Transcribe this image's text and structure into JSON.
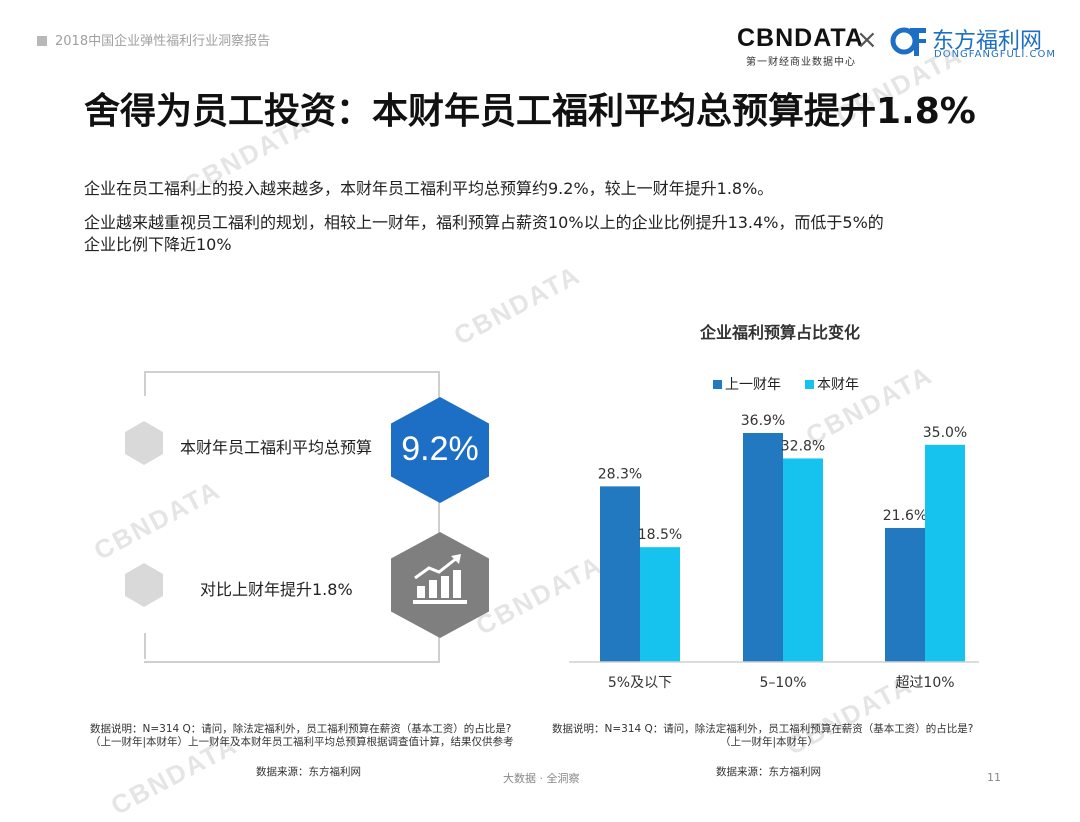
{
  "header": {
    "report_title": "2018中国企业弹性福利行业洞察报告",
    "logo_cbn": "CBNDATA",
    "logo_cbn_sub": "第一财经商业数据中心",
    "logo_times": "×",
    "logo_df_name": "东方福利网",
    "logo_df_url": "DONGFANGFULI.COM",
    "watermark_text": "CBNDATA",
    "colors": {
      "brand_blue": "#1c6fc4",
      "dark_blue": "#2379bf",
      "light_blue": "#15c3ee",
      "grey": "#d9d9d9"
    }
  },
  "slide": {
    "title": "舍得为员工投资：本财年员工福利平均总预算提升1.8%",
    "paragraph_1": "企业在员工福利上的投入越来越多，本财年员工福利平均总预算约9.2%，较上一财年提升1.8%。",
    "paragraph_2_line_1": "企业越来越重视员工福利的规划，相较上一财年，福利预算占薪资10%以上的企业比例提升13.4%，而低于5%的",
    "paragraph_2_line_2": "企业比例下降近10%"
  },
  "left_panel": {
    "item_1_label": "本财年员工福利平均总预算",
    "item_1_value": "9.2%",
    "item_1_icon": "blue-hexagon",
    "item_2_label": "对比上财年提升1.8%",
    "item_2_icon": "rising-bar-chart-icon",
    "note_line_1": "数据说明：N=314  Q：请问，除法定福利外，员工福利预算在薪资（基本工资）的占比是?",
    "note_line_2": "（上一财年|本财年）上一财年及本财年员工福利平均总预算根据调查值计算，结果仅供参考",
    "source": "数据来源：东方福利网"
  },
  "chart_data": {
    "type": "bar",
    "title": "企业福利预算占比变化",
    "categories": [
      "5%及以下",
      "5–10%",
      "超过10%"
    ],
    "series": [
      {
        "name": "上一财年",
        "color": "#2379bf",
        "values": [
          28.3,
          36.9,
          21.6
        ],
        "labels": [
          "28.3%",
          "36.9%",
          "21.6%"
        ]
      },
      {
        "name": "本财年",
        "color": "#15c3ee",
        "values": [
          18.5,
          32.8,
          35.0
        ],
        "labels": [
          "18.5%",
          "32.8%",
          "35.0%"
        ]
      }
    ],
    "ylim": [
      0,
      36.9
    ],
    "grid": false,
    "legend": "top-left"
  },
  "right_panel": {
    "note_line_1": "数据说明：N=314  Q：请问，除法定福利外，员工福利预算在薪资（基本工资）的占比是?",
    "note_line_2": "（上一财年|本财年）",
    "source": "数据来源：东方福利网"
  },
  "footer": {
    "center": "大数据 · 全洞察",
    "page_number": "11"
  }
}
